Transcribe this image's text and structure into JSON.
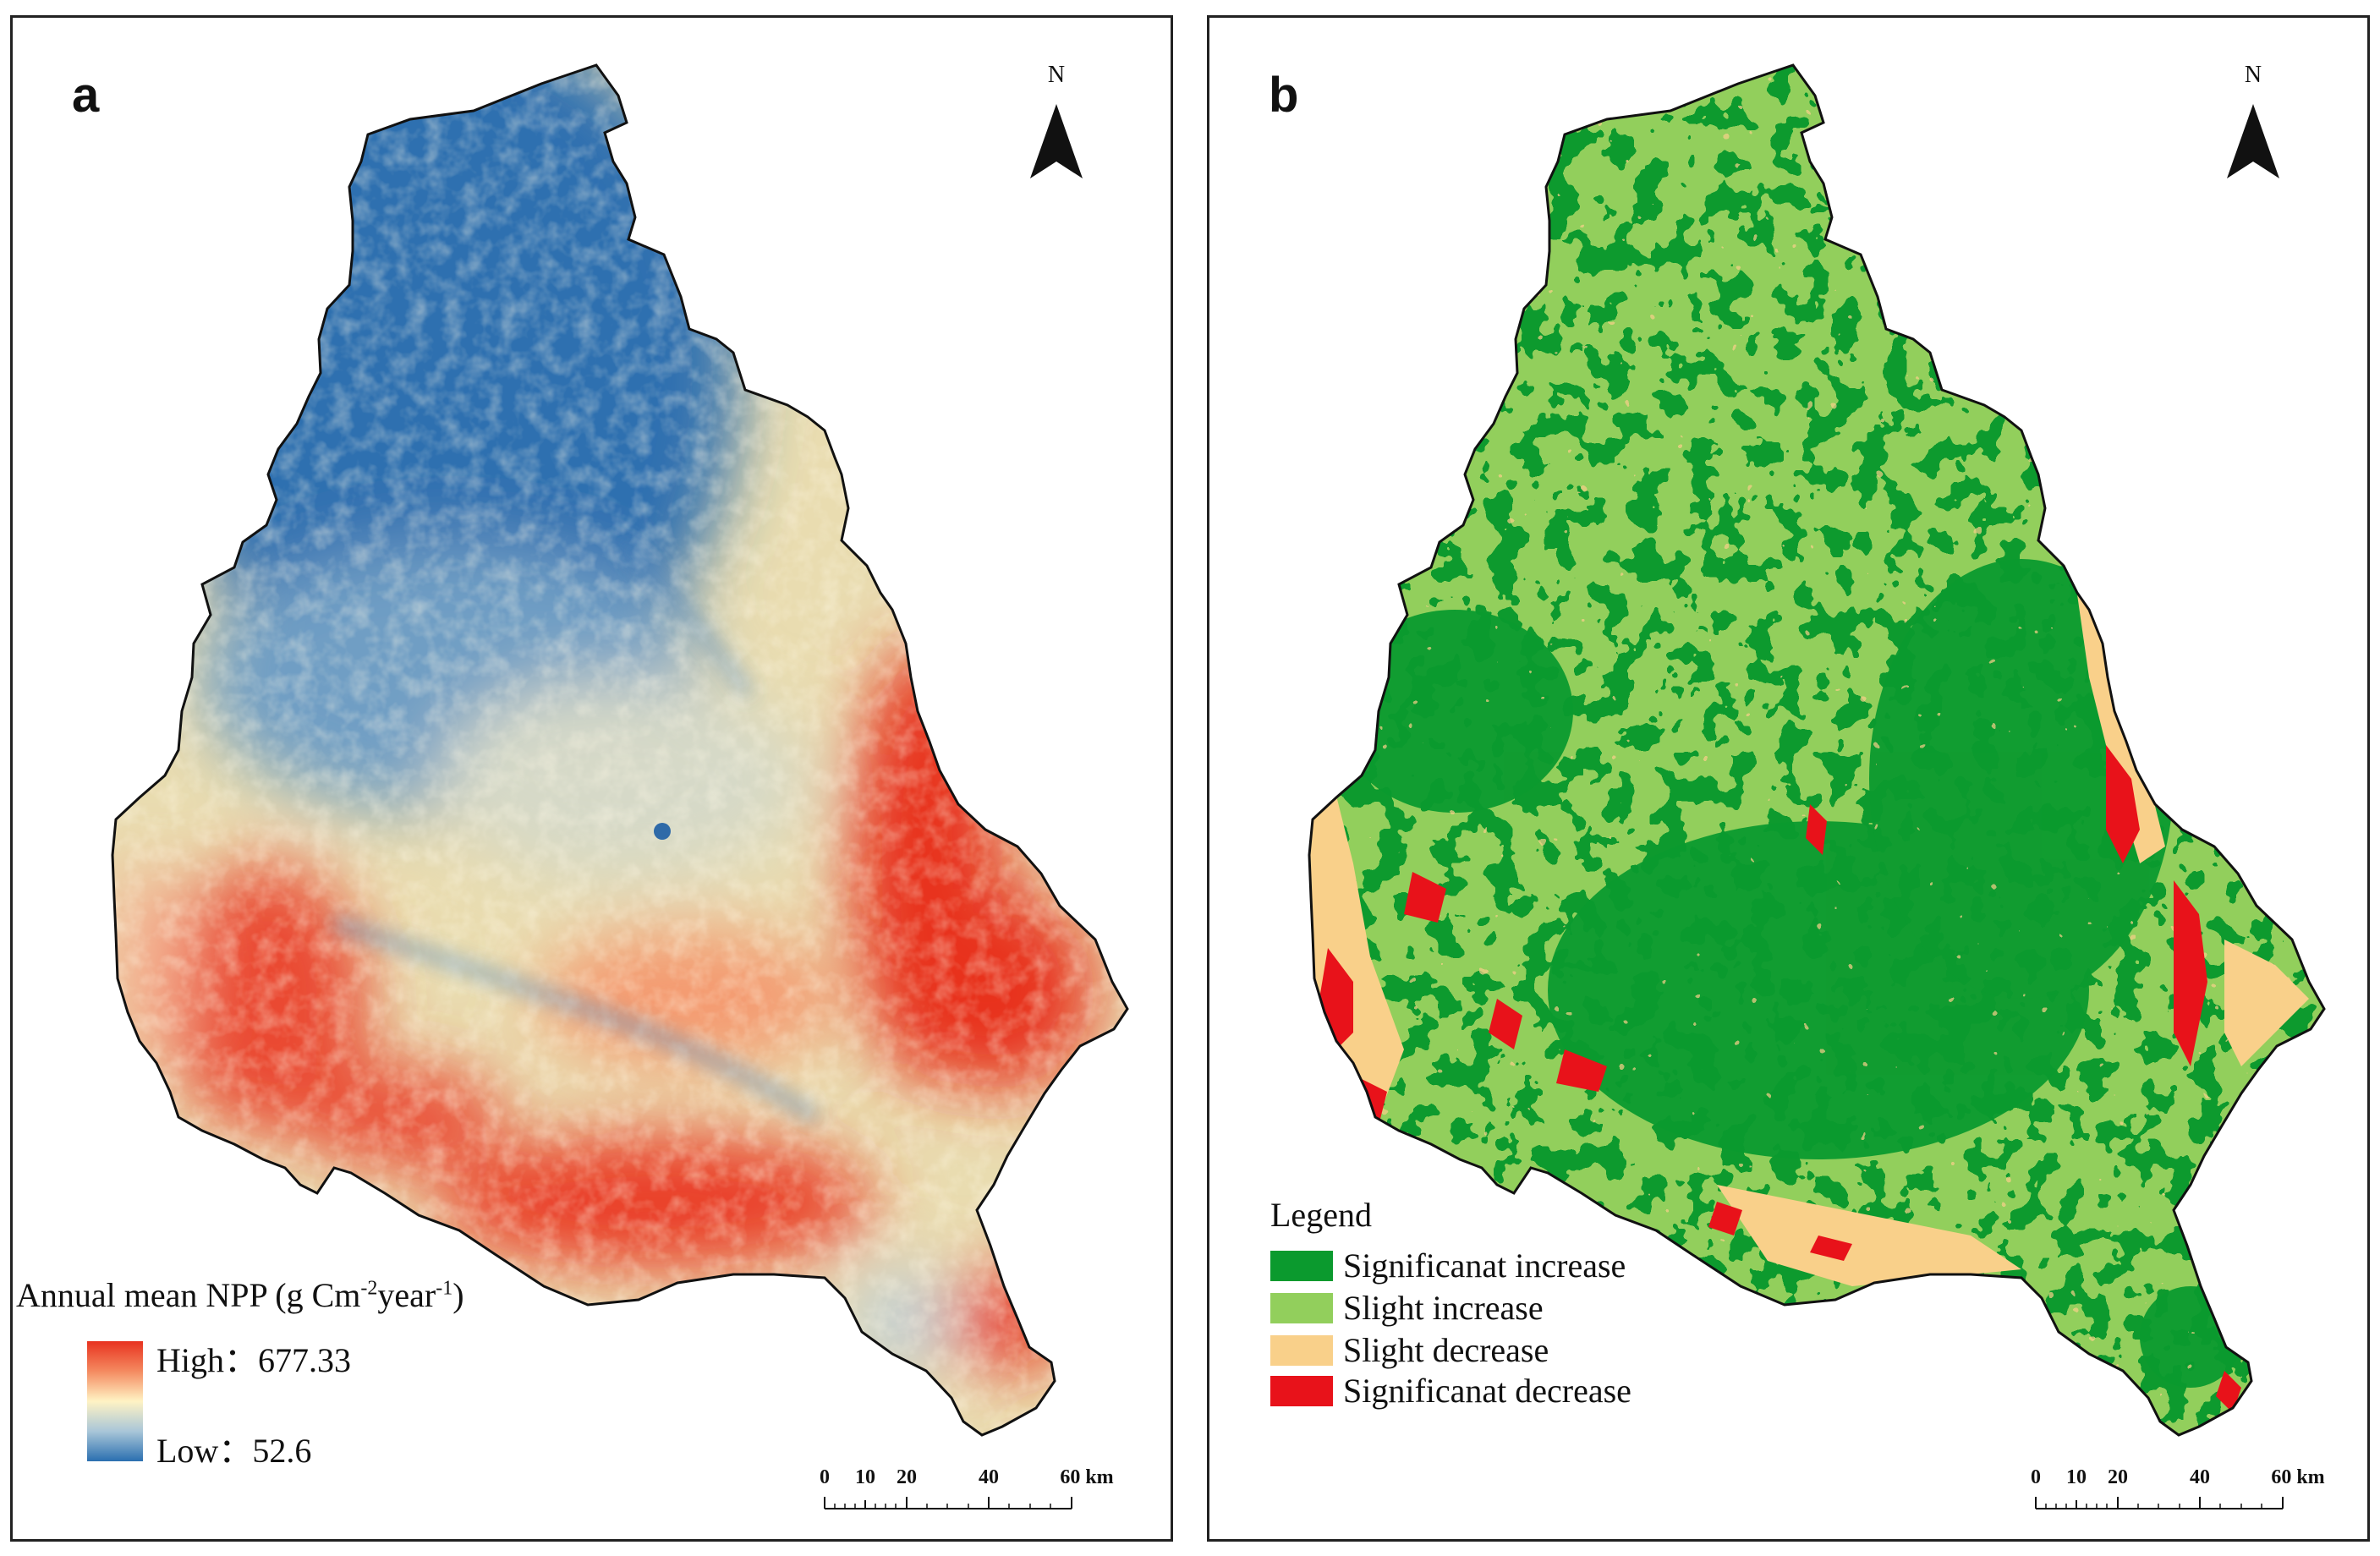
{
  "panel_a": {
    "letter": "a",
    "north_label": "N",
    "legend": {
      "title_prefix": "Annual mean NPP (g Cm",
      "title_sup1": "-2",
      "title_mid": "year",
      "title_sup2": "-1",
      "title_suffix": ")",
      "high_label": "High：677.33",
      "low_label": "Low：52.6",
      "ramp_colors": [
        "#e8321f",
        "#f48a60",
        "#fff3c4",
        "#a9c6d8",
        "#2a6fb0"
      ]
    },
    "scalebar": {
      "ticks": [
        "0",
        "10",
        "20",
        "40",
        "60 km"
      ]
    }
  },
  "panel_b": {
    "letter": "b",
    "north_label": "N",
    "legend": {
      "title": "Legend",
      "items": [
        {
          "label": "Significanat increase",
          "color": "#0b9a2e"
        },
        {
          "label": "Slight increase",
          "color": "#92cf5c"
        },
        {
          "label": "Slight  decrease",
          "color": "#f9d08a"
        },
        {
          "label": "Significanat decrease",
          "color": "#e8121a"
        }
      ]
    },
    "scalebar": {
      "ticks": [
        "0",
        "10",
        "20",
        "40",
        "60 km"
      ]
    }
  }
}
